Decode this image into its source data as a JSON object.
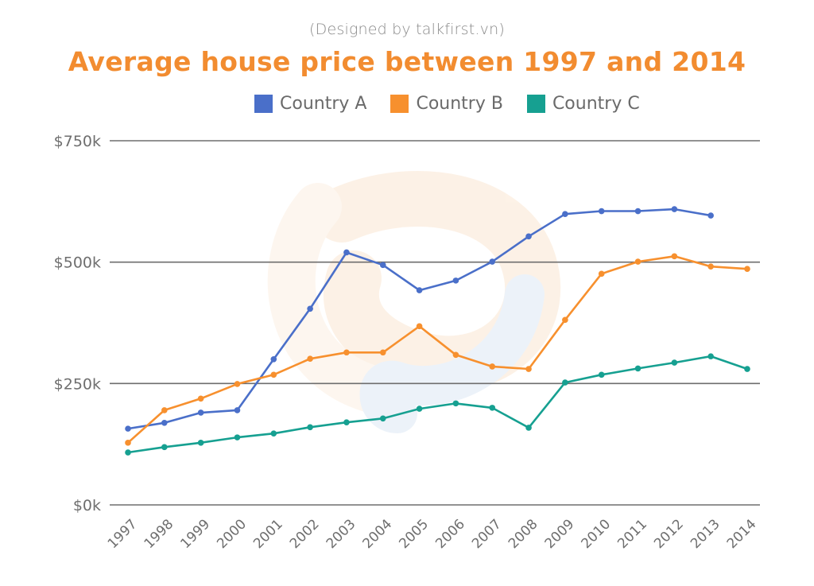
{
  "header": {
    "credit": "(Designed by talkfirst.vn)"
  },
  "chart_data": {
    "type": "line",
    "title": "Average house price between 1997 and 2014",
    "subtitle": "(Designed by talkfirst.vn)",
    "xlabel": "",
    "ylabel": "",
    "legend_position": "top-center",
    "grid": true,
    "ylim": [
      0,
      750
    ],
    "y_unit": "thousand USD",
    "y_ticks": [
      {
        "value": 0,
        "label": "$0k"
      },
      {
        "value": 250,
        "label": "$250k"
      },
      {
        "value": 500,
        "label": "$500k"
      },
      {
        "value": 750,
        "label": "$750k"
      }
    ],
    "categories": [
      "1997",
      "1998",
      "1999",
      "2000",
      "2001",
      "2002",
      "2003",
      "2004",
      "2005",
      "2006",
      "2007",
      "2008",
      "2009",
      "2010",
      "2011",
      "2012",
      "2013",
      "2014"
    ],
    "series": [
      {
        "name": "Country A",
        "color": "#4A6FC9",
        "values": [
          157,
          169,
          190,
          195,
          300,
          404,
          520,
          494,
          442,
          462,
          501,
          553,
          599,
          605,
          605,
          609,
          596,
          null
        ]
      },
      {
        "name": "Country B",
        "color": "#F7902E",
        "values": [
          128,
          195,
          219,
          249,
          268,
          301,
          314,
          314,
          368,
          309,
          285,
          280,
          381,
          476,
          501,
          512,
          491,
          486
        ]
      },
      {
        "name": "Country C",
        "color": "#16A091",
        "values": [
          108,
          119,
          128,
          139,
          147,
          160,
          170,
          178,
          198,
          209,
          200,
          159,
          252,
          268,
          281,
          293,
          306,
          280
        ]
      }
    ]
  }
}
